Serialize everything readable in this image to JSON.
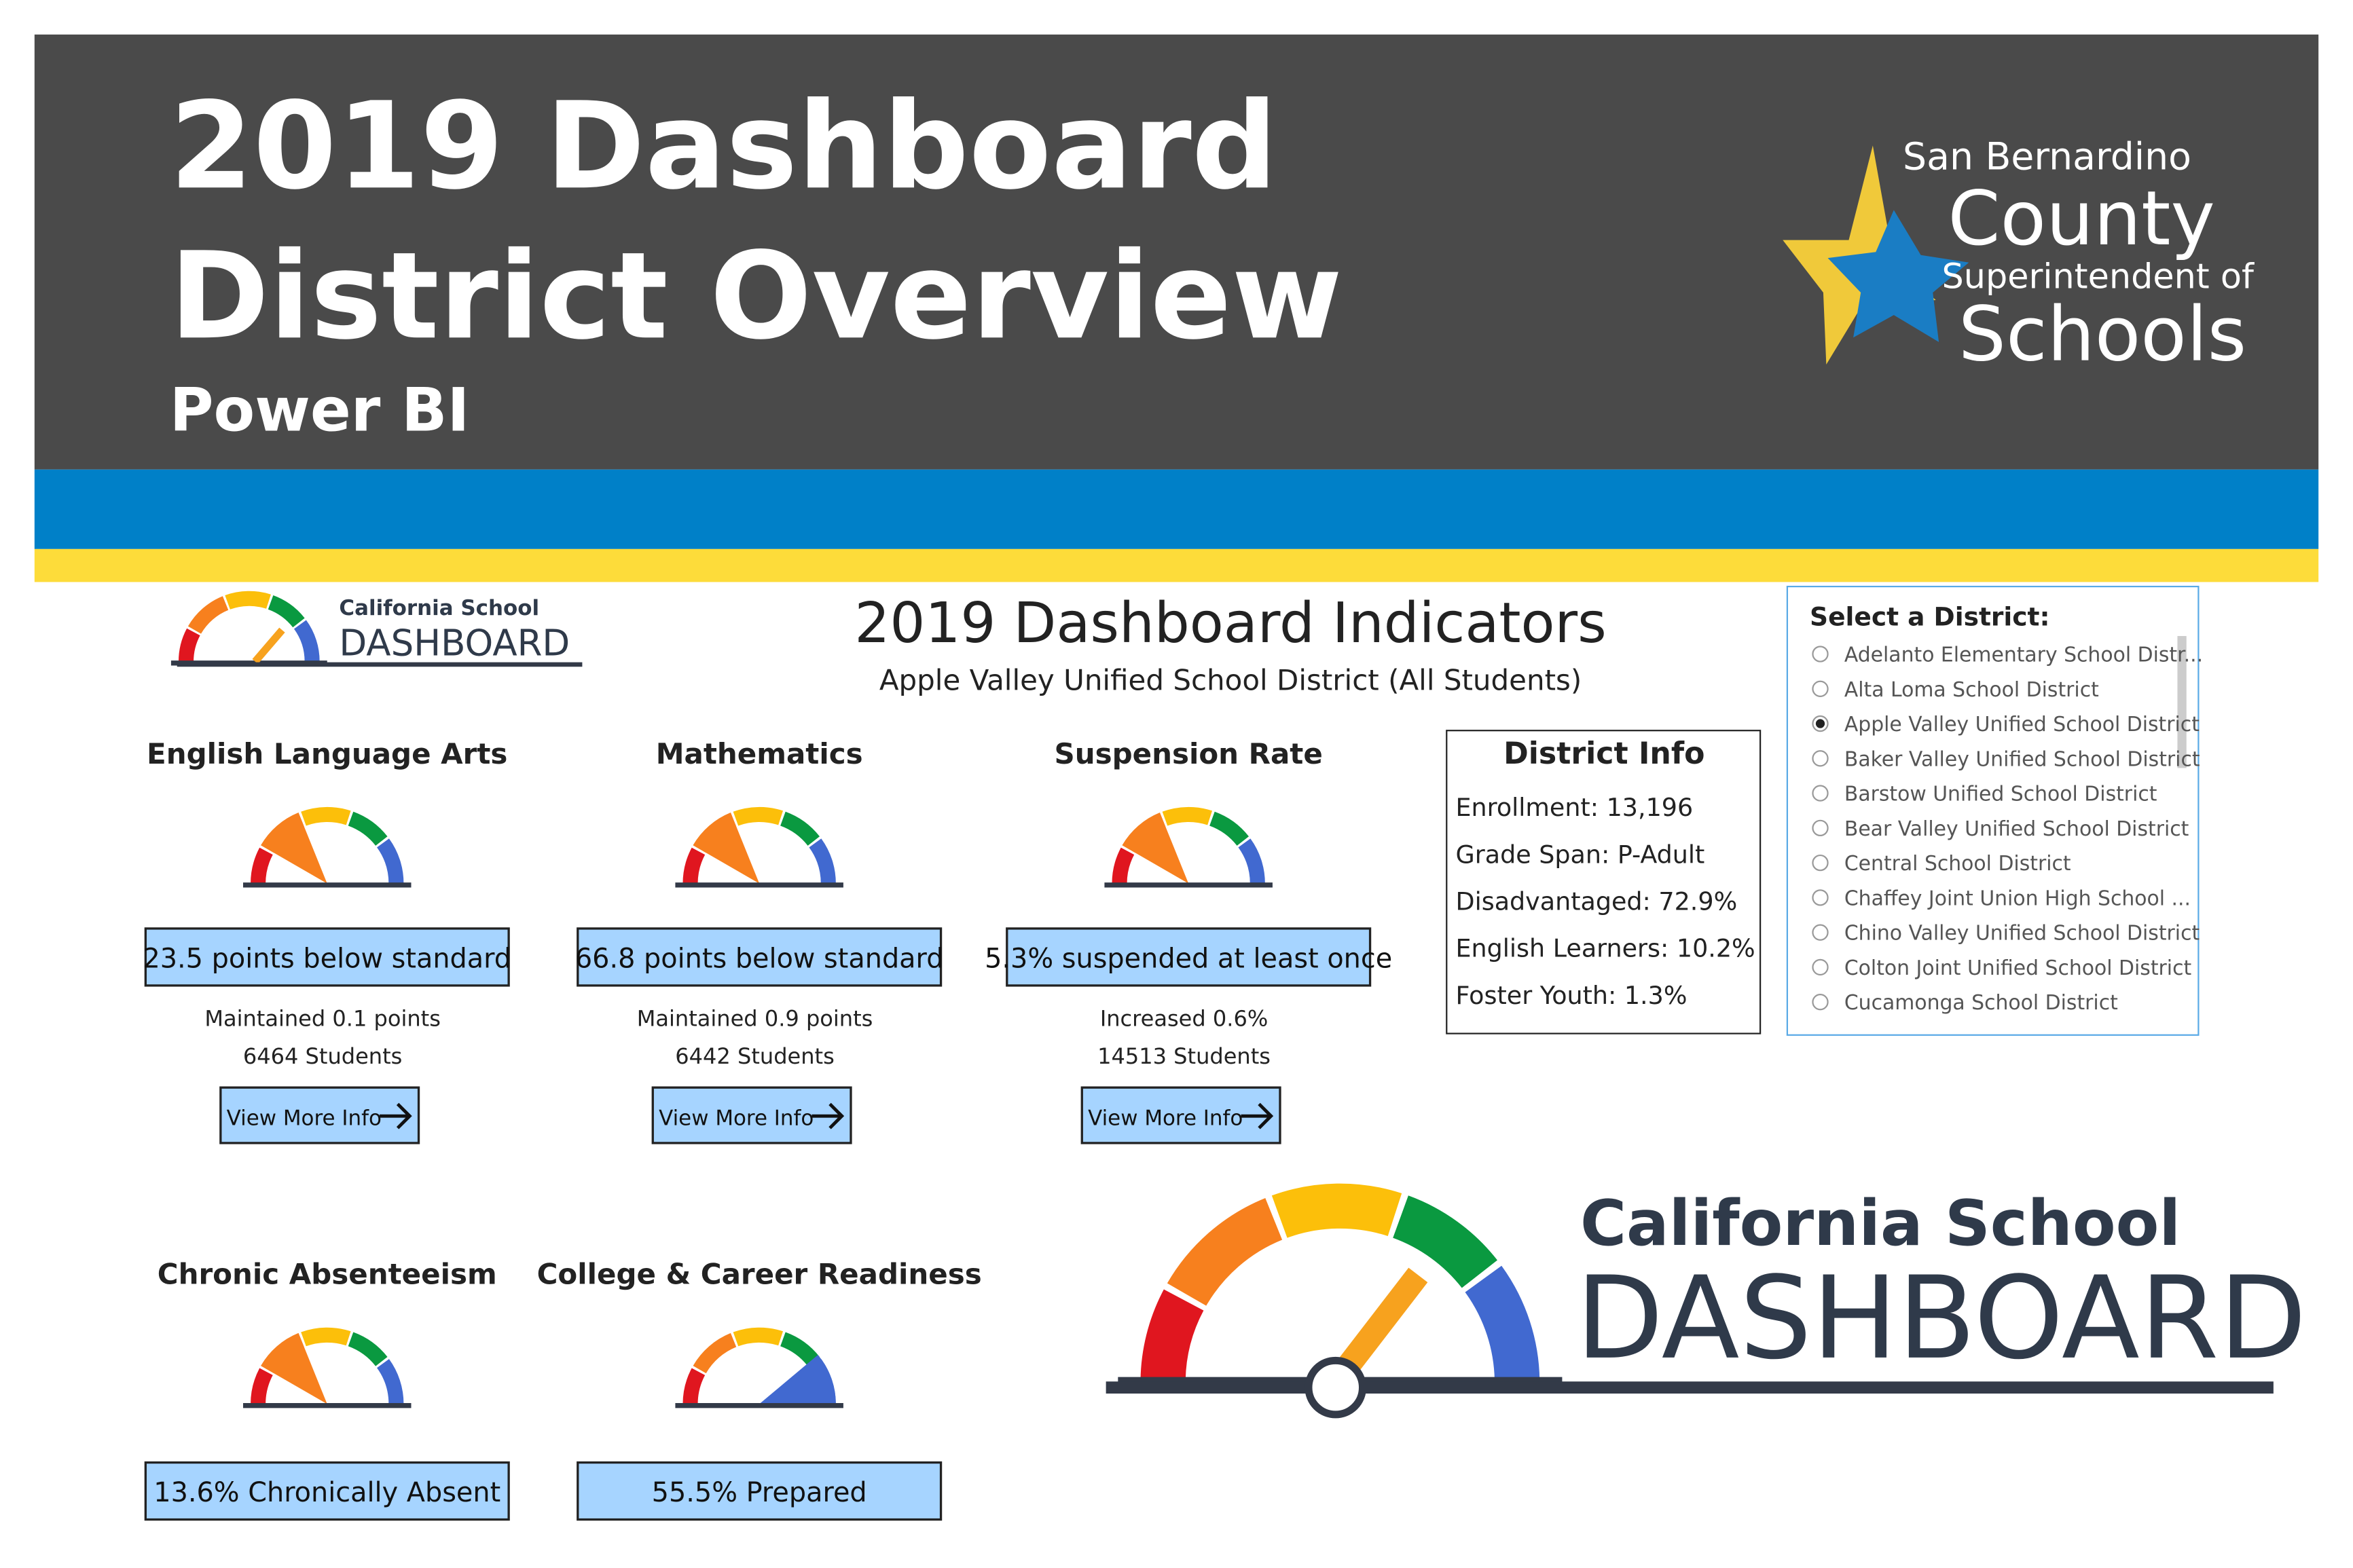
{
  "header": {
    "title_line1": "2019 Dashboard",
    "title_line2": "District Overview",
    "subtitle": "Power BI"
  },
  "logo": {
    "line1": "San Bernardino",
    "line2": "County",
    "line3": "Superintendent of",
    "line4": "Schools"
  },
  "small_logo": {
    "line1": "California School",
    "line2": "DASHBOARD"
  },
  "indicators": {
    "title": "2019 Dashboard Indicators",
    "district": "Apple Valley Unified School District (All Students)"
  },
  "cards": [
    {
      "name": "English Language Arts",
      "status": "23.5 points below standard",
      "change": "Maintained 0.1 points",
      "students": "6464 Students",
      "button": "View More Info"
    },
    {
      "name": "Mathematics",
      "status": "66.8 points below standard",
      "change": "Maintained 0.9 points",
      "students": "6442 Students",
      "button": "View More Info"
    },
    {
      "name": "Suspension Rate",
      "status": "5.3% suspended at least once",
      "change": "Increased 0.6%",
      "students": "14513 Students",
      "button": "View More Info"
    },
    {
      "name": "Chronic Absenteeism",
      "status": "13.6% Chronically Absent"
    },
    {
      "name": "College & Career Readiness",
      "status": "55.5% Prepared"
    }
  ],
  "district_info": {
    "title": "District Info",
    "lines": [
      "Enrollment: 13,196",
      "Grade Span: P-Adult",
      "Disadvantaged: 72.9%",
      "English Learners: 10.2%",
      "Foster Youth: 1.3%"
    ]
  },
  "selector": {
    "label": "Select a District:",
    "selected": 2,
    "options": [
      "Adelanto Elementary School Distr...",
      "Alta Loma School District",
      "Apple Valley Unified School District",
      "Baker Valley Unified School District",
      "Barstow Unified School District",
      "Bear Valley Unified School District",
      "Central School District",
      "Chaffey Joint Union High School ...",
      "Chino Valley Unified School District",
      "Colton Joint Unified School District",
      "Cucamonga School District"
    ]
  },
  "big_logo": {
    "line1": "California School",
    "line2": "DASHBOARD"
  }
}
